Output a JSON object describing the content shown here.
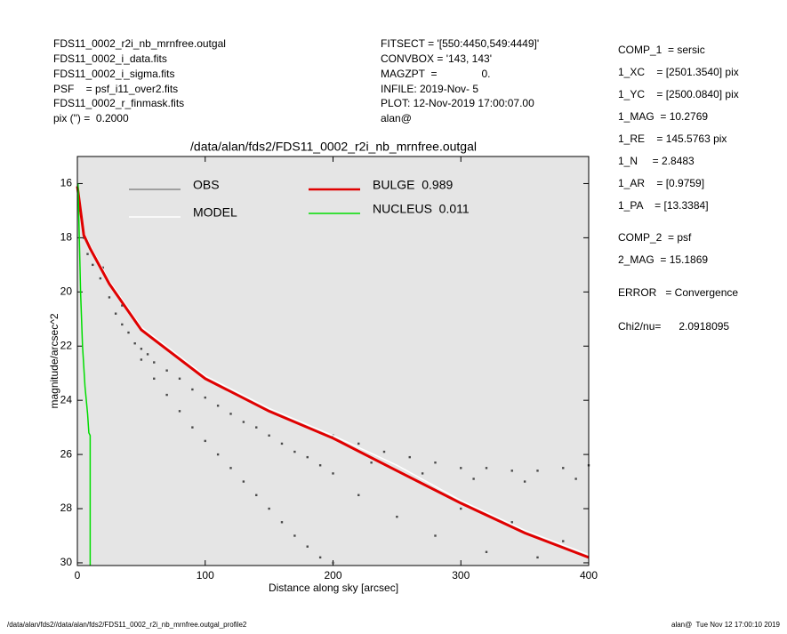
{
  "header_left": [
    "FDS11_0002_r2i_nb_mrnfree.outgal",
    "FDS11_0002_i_data.fits",
    "FDS11_0002_i_sigma.fits",
    "PSF    = psf_i11_over2.fits",
    "FDS11_0002_r_finmask.fits",
    "pix (\") =  0.2000"
  ],
  "header_center": [
    "FITSECT = '[550:4450,549:4449]'",
    "CONVBOX = '143, 143'",
    "MAGZPT  =               0.",
    "INFILE: 2019-Nov- 5",
    "PLOT: 12-Nov-2019 17:00:07.00",
    "alan@"
  ],
  "params": [
    "COMP_1  = sersic",
    "1_XC    = [2501.3540] pix",
    "1_YC    = [2500.0840] pix",
    "1_MAG  = 10.2769",
    "1_RE    = 145.5763 pix",
    "1_N     = 2.8483",
    "1_AR    = [0.9759]",
    "1_PA    = [13.3384]",
    "COMP_2  = psf",
    "2_MAG  = 15.1869",
    "ERROR   = Convergence",
    "Chi2/nu=      2.0918095"
  ],
  "footer_left": "/data/alan/fds2//data/alan/fds2/FDS11_0002_r2i_nb_mrnfree.outgal_profile2",
  "footer_right": "alan@  Tue Nov 12 17:00:10 2019",
  "chart_data": {
    "type": "scatter",
    "title": "/data/alan/fds2/FDS11_0002_r2i_nb_mrnfree.outgal",
    "xlabel": "Distance along sky [arcsec]",
    "ylabel": "magnitude/arcsec^2",
    "xlim": [
      0,
      400
    ],
    "ylim": [
      30.1,
      15
    ],
    "xticks": [
      0,
      100,
      200,
      300,
      400
    ],
    "yticks": [
      16,
      18,
      20,
      22,
      24,
      26,
      28,
      30
    ],
    "series": [
      {
        "name": "OBS",
        "mode": "markers",
        "color": "#4a4a4a",
        "legend_color": "#8a8a8a",
        "text_color": "#9a9a9a",
        "x": [
          2,
          5,
          8,
          12,
          18,
          20,
          25,
          30,
          35,
          35,
          40,
          45,
          50,
          55,
          60,
          70,
          80,
          90,
          100,
          110,
          120,
          130,
          140,
          150,
          160,
          170,
          180,
          190,
          200,
          50,
          60,
          70,
          80,
          90,
          100,
          110,
          120,
          130,
          140,
          150,
          160,
          170,
          180,
          190,
          200,
          200,
          220,
          240,
          260,
          280,
          300,
          320,
          340,
          360,
          380,
          400,
          230,
          270,
          310,
          350,
          390,
          220,
          250,
          280,
          320,
          360,
          300,
          340,
          380
        ],
        "values": [
          17,
          18,
          18.6,
          19,
          19.5,
          19.1,
          20.2,
          20.8,
          21.2,
          20.5,
          21.5,
          21.9,
          22.1,
          22.3,
          22.6,
          22.9,
          23.2,
          23.6,
          23.9,
          24.2,
          24.5,
          24.8,
          25.0,
          25.3,
          25.6,
          25.9,
          26.1,
          26.4,
          26.7,
          22.5,
          23.2,
          23.8,
          24.4,
          25,
          25.5,
          26,
          26.5,
          27,
          27.5,
          28,
          28.5,
          29,
          29.4,
          29.8,
          30,
          25.3,
          25.6,
          25.9,
          26.1,
          26.3,
          26.5,
          26.5,
          26.6,
          26.6,
          26.5,
          26.4,
          26.3,
          26.7,
          26.9,
          27.0,
          26.9,
          27.5,
          28.3,
          29,
          29.6,
          29.8,
          28,
          28.5,
          29.2
        ]
      },
      {
        "name": "MODEL",
        "mode": "line",
        "color": "#ffffff",
        "text_color": "#ffffff",
        "x": [
          0,
          5,
          10,
          25,
          50,
          100,
          150,
          200,
          250,
          300,
          350,
          400
        ],
        "values": [
          16,
          17.8,
          18.3,
          19.6,
          21.3,
          23.1,
          24.3,
          25.3,
          26.4,
          27.7,
          28.8,
          29.7
        ]
      },
      {
        "name": "BULGE  0.989",
        "mode": "line",
        "color": "#e00000",
        "text_color": "#e00000",
        "x": [
          0,
          5,
          10,
          25,
          50,
          100,
          150,
          200,
          250,
          300,
          350,
          400
        ],
        "values": [
          16.1,
          17.9,
          18.4,
          19.7,
          21.4,
          23.2,
          24.4,
          25.4,
          26.6,
          27.8,
          28.9,
          29.8
        ]
      },
      {
        "name": "NUCLEUS  0.011",
        "mode": "line",
        "color": "#00dd00",
        "text_color": "#00dd00",
        "x": [
          0.5,
          1,
          1.5,
          2.5,
          4,
          6,
          8,
          9,
          10,
          10
        ],
        "values": [
          16,
          17,
          18,
          20,
          22,
          23.5,
          24.5,
          25.2,
          25.3,
          30.1
        ]
      }
    ]
  }
}
